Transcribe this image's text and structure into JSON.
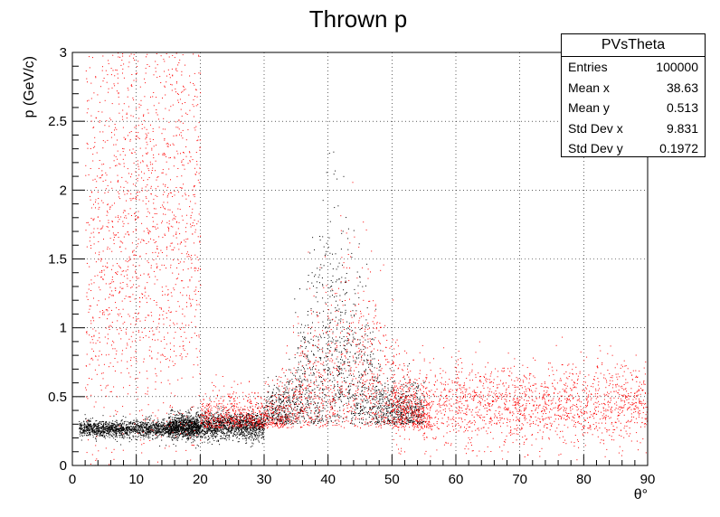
{
  "chart_data": {
    "type": "scatter",
    "title": "Thrown p",
    "xlabel": "θ°",
    "ylabel": "p (GeV/c)",
    "xlim": [
      0,
      90
    ],
    "ylim": [
      0,
      3
    ],
    "x_ticks": [
      "0",
      "10",
      "20",
      "30",
      "40",
      "50",
      "60",
      "70",
      "80",
      "90"
    ],
    "y_ticks": [
      "0",
      "0.5",
      "1",
      "1.5",
      "2",
      "2.5",
      "3"
    ],
    "x_tick_values": [
      0,
      10,
      20,
      30,
      40,
      50,
      60,
      70,
      80,
      90
    ],
    "y_tick_values": [
      0,
      0.5,
      1,
      1.5,
      2,
      2.5,
      3
    ],
    "grid": true,
    "series": [
      {
        "color": "#000000",
        "clusters": [
          {
            "x_range": [
              1,
              20
            ],
            "y_center": 0.27,
            "y_spread": 0.03
          },
          {
            "x_range": [
              15,
              30
            ],
            "y_center": 0.29,
            "y_spread": 0.05
          },
          {
            "x_range": [
              30,
              55
            ],
            "y_center": 0.55,
            "y_spread": 0.4,
            "peak": [
              41,
              1.75
            ]
          }
        ]
      },
      {
        "color": "#ff0000",
        "clusters": [
          {
            "x_range": [
              20,
              56
            ],
            "y_center": 0.5,
            "y_spread": 0.35,
            "peak": [
              43,
              1.45
            ]
          },
          {
            "x_range": [
              2,
              20
            ],
            "y_center": 1.8,
            "y_spread": 1.0
          },
          {
            "x_range": [
              50,
              90
            ],
            "y_center": 0.45,
            "y_spread": 0.15
          }
        ]
      }
    ],
    "stats_box": {
      "title": "PVsTheta",
      "rows": [
        {
          "label": "Entries",
          "value": "100000"
        },
        {
          "label": "Mean x",
          "value": "38.63"
        },
        {
          "label": "Mean y",
          "value": "0.513"
        },
        {
          "label": "Std Dev x",
          "value": "9.831"
        },
        {
          "label": "Std Dev y",
          "value": "0.1972"
        }
      ]
    }
  }
}
